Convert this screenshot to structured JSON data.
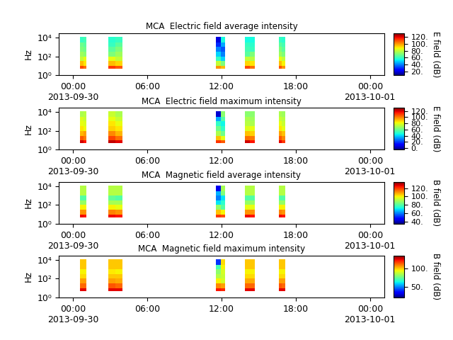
{
  "chart_data": [
    {
      "type": "heatmap",
      "title": "MCA  Electric field average intensity",
      "y_label": "Hz",
      "log": "y",
      "xlim": [
        -1.14,
        25.14
      ],
      "xticks": [
        {
          "value": 0,
          "label": "00:00\n2013-09-30"
        },
        {
          "value": 6,
          "label": "06:00"
        },
        {
          "value": 12,
          "label": "12:00"
        },
        {
          "value": 18,
          "label": "18:00"
        },
        {
          "value": 24,
          "label": "00:00\n2013-10-01"
        }
      ],
      "ylim": [
        1,
        28000
      ],
      "yticks": [
        {
          "value": 1,
          "label": "10⁰"
        },
        {
          "value": 100,
          "label": "10²"
        },
        {
          "value": 10000,
          "label": "10⁴"
        }
      ],
      "x_edges": [
        0.57,
        0.83,
        1.09,
        2.86,
        3.43,
        4.0,
        11.54,
        11.92,
        12.29,
        13.89,
        14.29,
        14.69,
        16.63,
        16.88,
        17.14
      ],
      "y_edges": [
        5,
        10,
        30,
        100,
        300,
        1000,
        3000,
        12000
      ],
      "cells": [
        [
          110,
          105,
          null,
          112,
          108,
          null,
          100,
          95,
          null,
          110,
          105,
          null,
          108,
          100
        ],
        [
          95,
          90,
          null,
          95,
          92,
          null,
          80,
          70,
          null,
          92,
          90,
          null,
          95,
          88
        ],
        [
          80,
          85,
          null,
          85,
          80,
          null,
          60,
          50,
          null,
          80,
          78,
          null,
          85,
          80
        ],
        [
          75,
          72,
          null,
          70,
          75,
          null,
          50,
          40,
          null,
          65,
          70,
          null,
          75,
          70
        ],
        [
          70,
          68,
          null,
          65,
          70,
          null,
          40,
          35,
          null,
          62,
          60,
          null,
          70,
          65
        ],
        [
          68,
          65,
          null,
          60,
          65,
          null,
          30,
          45,
          null,
          60,
          58,
          null,
          65,
          62
        ],
        [
          60,
          62,
          null,
          58,
          60,
          null,
          20,
          55,
          null,
          55,
          55,
          null,
          60,
          58
        ]
      ],
      "colorbar_range": [
        10,
        130
      ],
      "colorbar_ticks": [
        {
          "value": 20,
          "label": "20."
        },
        {
          "value": 40,
          "label": "40."
        },
        {
          "value": 60,
          "label": "60."
        },
        {
          "value": 80,
          "label": "80."
        },
        {
          "value": 100,
          "label": "100."
        },
        {
          "value": 120,
          "label": "120."
        }
      ],
      "colorbar_label": "E field (dB)"
    },
    {
      "type": "heatmap",
      "title": "MCA  Electric field maximum intensity",
      "y_label": "Hz",
      "log": "y",
      "xlim": [
        -1.14,
        25.14
      ],
      "xticks": [
        {
          "value": 0,
          "label": "00:00\n2013-09-30"
        },
        {
          "value": 6,
          "label": "06:00"
        },
        {
          "value": 12,
          "label": "12:00"
        },
        {
          "value": 18,
          "label": "18:00"
        },
        {
          "value": 24,
          "label": "00:00\n2013-10-01"
        }
      ],
      "ylim": [
        1,
        28000
      ],
      "yticks": [
        {
          "value": 1,
          "label": "10⁰"
        },
        {
          "value": 100,
          "label": "10²"
        },
        {
          "value": 10000,
          "label": "10⁴"
        }
      ],
      "x_edges": [
        0.57,
        0.83,
        1.09,
        2.86,
        3.43,
        4.0,
        11.54,
        11.92,
        12.29,
        13.89,
        14.29,
        14.69,
        16.63,
        16.88,
        17.14
      ],
      "y_edges": [
        5,
        10,
        30,
        100,
        300,
        1000,
        3000,
        12000
      ],
      "cells": [
        [
          120,
          115,
          null,
          122,
          118,
          null,
          110,
          105,
          null,
          120,
          115,
          null,
          118,
          110
        ],
        [
          105,
          100,
          null,
          108,
          102,
          null,
          90,
          80,
          null,
          102,
          100,
          null,
          105,
          98
        ],
        [
          92,
          95,
          null,
          98,
          92,
          null,
          70,
          60,
          null,
          90,
          88,
          null,
          95,
          90
        ],
        [
          85,
          82,
          null,
          88,
          85,
          null,
          60,
          50,
          null,
          78,
          80,
          null,
          85,
          80
        ],
        [
          80,
          78,
          null,
          85,
          80,
          null,
          50,
          45,
          null,
          72,
          70,
          null,
          80,
          75
        ],
        [
          78,
          75,
          null,
          80,
          75,
          null,
          35,
          55,
          null,
          70,
          68,
          null,
          75,
          72
        ],
        [
          70,
          72,
          null,
          75,
          70,
          null,
          5,
          65,
          null,
          65,
          65,
          null,
          70,
          68
        ]
      ],
      "colorbar_range": [
        -5,
        130
      ],
      "colorbar_ticks": [
        {
          "value": 0,
          "label": "0."
        },
        {
          "value": 20,
          "label": "20."
        },
        {
          "value": 40,
          "label": "40."
        },
        {
          "value": 60,
          "label": "60."
        },
        {
          "value": 80,
          "label": "80."
        },
        {
          "value": 100,
          "label": "100."
        },
        {
          "value": 120,
          "label": "120."
        }
      ],
      "colorbar_label": "E field (dB)"
    },
    {
      "type": "heatmap",
      "title": "MCA  Magnetic field average intensity",
      "y_label": "Hz",
      "log": "y",
      "xlim": [
        -1.14,
        25.14
      ],
      "xticks": [
        {
          "value": 0,
          "label": "00:00\n2013-09-30"
        },
        {
          "value": 6,
          "label": "06:00"
        },
        {
          "value": 12,
          "label": "12:00"
        },
        {
          "value": 18,
          "label": "18:00"
        },
        {
          "value": 24,
          "label": "00:00\n2013-10-01"
        }
      ],
      "ylim": [
        1,
        28000
      ],
      "yticks": [
        {
          "value": 1,
          "label": "10⁰"
        },
        {
          "value": 100,
          "label": "10²"
        },
        {
          "value": 10000,
          "label": "10⁴"
        }
      ],
      "x_edges": [
        0.57,
        0.83,
        1.09,
        2.86,
        3.43,
        4.0,
        11.54,
        11.92,
        12.29,
        13.89,
        14.29,
        14.69,
        16.63,
        16.88,
        17.14
      ],
      "y_edges": [
        5,
        10,
        30,
        100,
        300,
        1000,
        3000,
        12000
      ],
      "cells": [
        [
          125,
          124,
          null,
          125,
          124,
          null,
          120,
          118,
          null,
          125,
          124,
          null,
          125,
          124
        ],
        [
          110,
          110,
          null,
          112,
          110,
          null,
          105,
          100,
          null,
          110,
          110,
          null,
          112,
          110
        ],
        [
          100,
          100,
          null,
          100,
          98,
          null,
          88,
          80,
          null,
          98,
          98,
          null,
          100,
          100
        ],
        [
          88,
          88,
          null,
          90,
          90,
          null,
          70,
          75,
          null,
          88,
          88,
          null,
          88,
          88
        ],
        [
          80,
          80,
          null,
          82,
          80,
          null,
          60,
          70,
          null,
          80,
          80,
          null,
          80,
          80
        ],
        [
          92,
          92,
          null,
          92,
          92,
          null,
          65,
          85,
          null,
          92,
          92,
          null,
          92,
          92
        ],
        [
          92,
          92,
          null,
          92,
          92,
          null,
          45,
          90,
          null,
          92,
          92,
          null,
          92,
          92
        ]
      ],
      "colorbar_range": [
        35,
        135
      ],
      "colorbar_ticks": [
        {
          "value": 40,
          "label": "40."
        },
        {
          "value": 60,
          "label": "60."
        },
        {
          "value": 80,
          "label": "80."
        },
        {
          "value": 100,
          "label": "100."
        },
        {
          "value": 120,
          "label": "120."
        }
      ],
      "colorbar_label": "B field (dB)"
    },
    {
      "type": "heatmap",
      "title": "MCA  Magnetic field maximum intensity",
      "y_label": "Hz",
      "log": "y",
      "xlim": [
        -1.14,
        25.14
      ],
      "xticks": [
        {
          "value": 0,
          "label": "00:00\n2013-09-30"
        },
        {
          "value": 6,
          "label": "06:00"
        },
        {
          "value": 12,
          "label": "12:00"
        },
        {
          "value": 18,
          "label": "18:00"
        },
        {
          "value": 24,
          "label": "00:00\n2013-10-01"
        }
      ],
      "ylim": [
        1,
        28000
      ],
      "yticks": [
        {
          "value": 1,
          "label": "10⁰"
        },
        {
          "value": 100,
          "label": "10²"
        },
        {
          "value": 10000,
          "label": "10⁴"
        }
      ],
      "x_edges": [
        0.57,
        0.83,
        1.09,
        2.86,
        3.43,
        4.0,
        11.54,
        11.92,
        12.29,
        13.89,
        14.29,
        14.69,
        16.63,
        16.88,
        17.14
      ],
      "y_edges": [
        5,
        10,
        30,
        100,
        300,
        1000,
        3000,
        12000
      ],
      "cells": [
        [
          125,
          125,
          null,
          125,
          125,
          null,
          122,
          120,
          null,
          125,
          125,
          null,
          125,
          125
        ],
        [
          112,
          112,
          null,
          114,
          112,
          null,
          108,
          105,
          null,
          112,
          112,
          null,
          114,
          112
        ],
        [
          105,
          105,
          null,
          105,
          104,
          null,
          95,
          90,
          null,
          104,
          104,
          null,
          105,
          105
        ],
        [
          98,
          98,
          null,
          100,
          100,
          null,
          85,
          88,
          null,
          98,
          98,
          null,
          98,
          98
        ],
        [
          95,
          95,
          null,
          96,
          95,
          null,
          80,
          90,
          null,
          95,
          95,
          null,
          95,
          95
        ],
        [
          100,
          100,
          null,
          100,
          100,
          null,
          70,
          95,
          null,
          100,
          100,
          null,
          100,
          100
        ],
        [
          100,
          100,
          null,
          100,
          100,
          null,
          40,
          98,
          null,
          100,
          100,
          null,
          100,
          100
        ]
      ],
      "colorbar_range": [
        20,
        135
      ],
      "colorbar_ticks": [
        {
          "value": 50,
          "label": "50."
        },
        {
          "value": 100,
          "label": "100."
        }
      ],
      "colorbar_label": "B field (dB)"
    }
  ]
}
